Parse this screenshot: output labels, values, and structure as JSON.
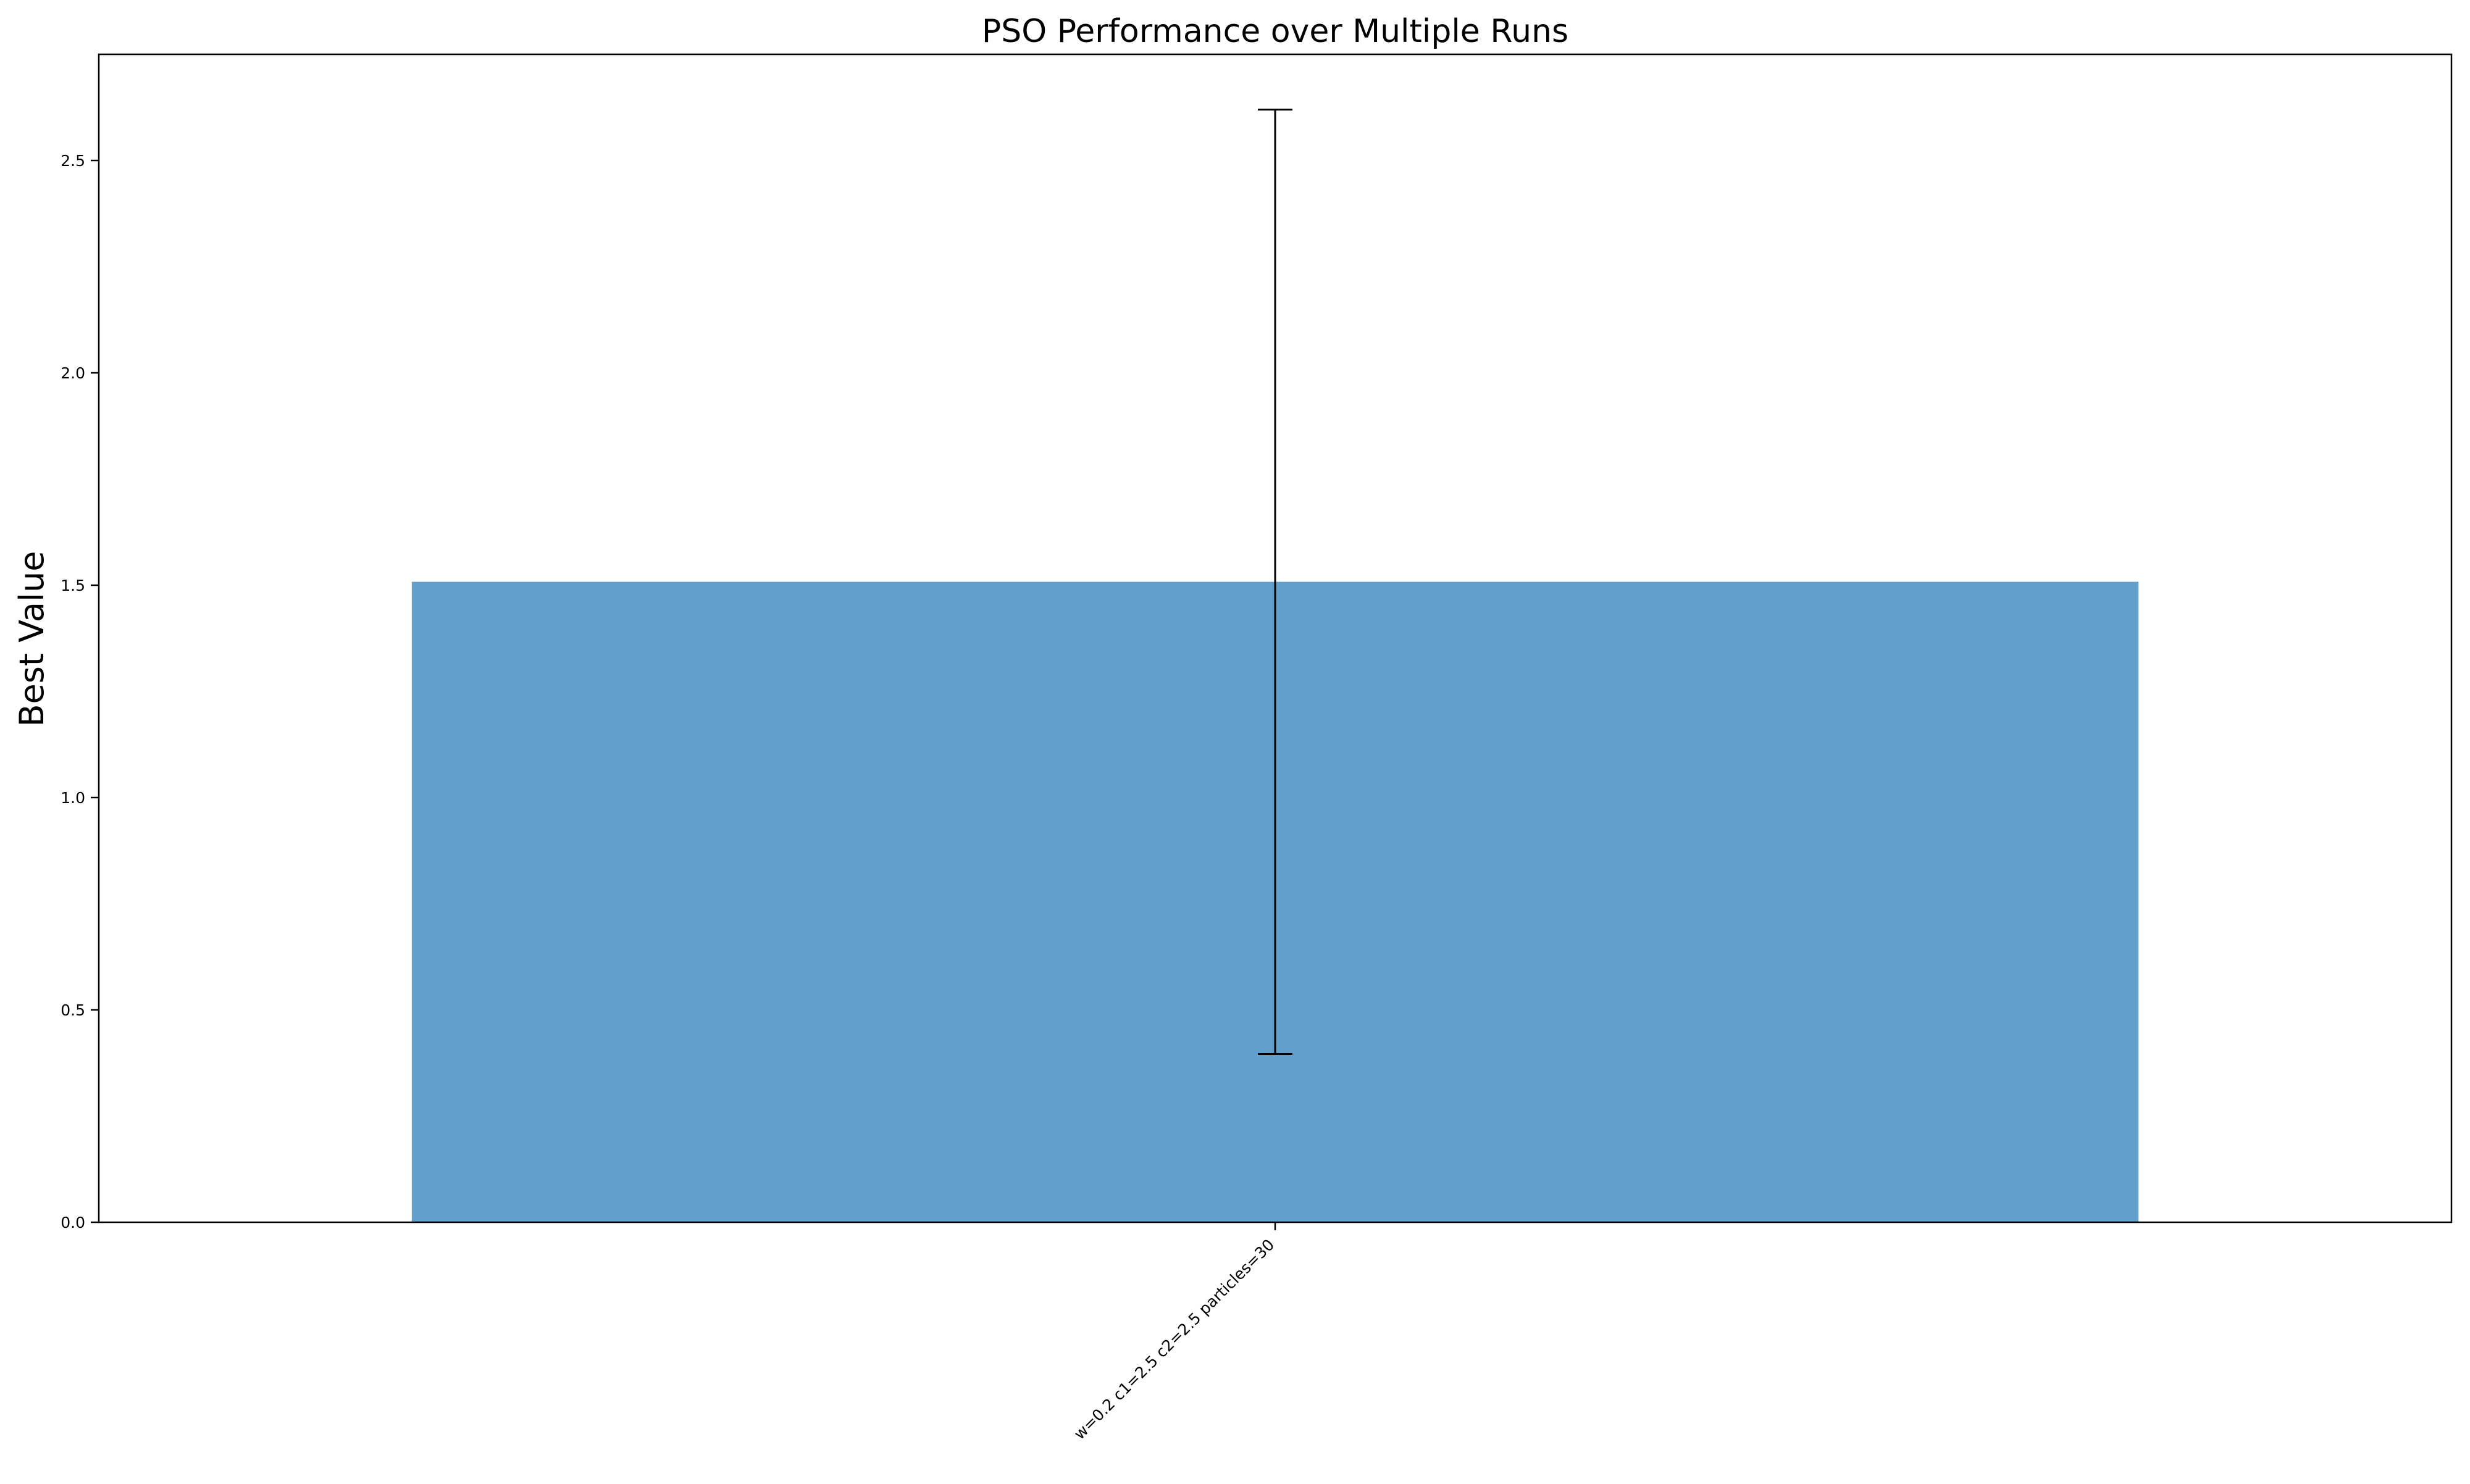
{
  "chart_data": {
    "type": "bar",
    "title": "PSO Performance over Multiple Runs",
    "xlabel": "",
    "ylabel": "Best Value",
    "categories": [
      "w=0.2 c1=2.5 c2=2.5 particles=30"
    ],
    "values": [
      1.508
    ],
    "error": [
      1.112
    ],
    "ylim": [
      0,
      2.75
    ],
    "yticks": [
      0.0,
      0.5,
      1.0,
      1.5,
      2.0,
      2.5
    ],
    "ytick_labels": [
      "0.0",
      "0.5",
      "1.0",
      "1.5",
      "2.0",
      "2.5"
    ],
    "grid": false,
    "legend": "none",
    "bar_color": "#62a0cb",
    "bar_alpha": 1.0,
    "error_color": "#000000"
  }
}
